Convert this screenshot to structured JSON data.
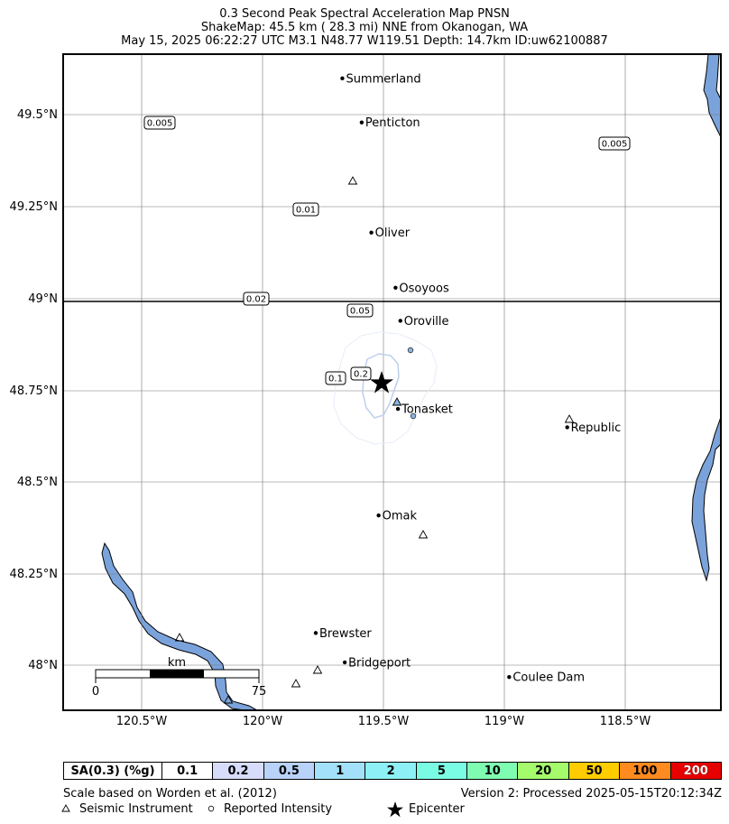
{
  "title": {
    "line1": "0.3 Second Peak Spectral Acceleration Map PNSN",
    "line2": "ShakeMap: 45.5 km (  28.3 mi) NNE from Okanogan, WA",
    "line3": "May 15, 2025 06:22:27 UTC M3.1 N48.77 W119.51 Depth: 14.7km ID:uw62100887"
  },
  "axes": {
    "x_ticks": [
      "120.5°W",
      "120°W",
      "119.5°W",
      "119°W",
      "118.5°W"
    ],
    "y_ticks": [
      "49.5°N",
      "49.25°N",
      "49°N",
      "48.75°N",
      "48.5°N",
      "48.25°N",
      "48°N"
    ]
  },
  "cities": [
    {
      "name": "Summerland",
      "lon": -119.67,
      "lat": 49.6
    },
    {
      "name": "Penticton",
      "lon": -119.59,
      "lat": 49.48
    },
    {
      "name": "Oliver",
      "lon": -119.55,
      "lat": 49.18
    },
    {
      "name": "Osoyoos",
      "lon": -119.45,
      "lat": 49.03
    },
    {
      "name": "Oroville",
      "lon": -119.43,
      "lat": 48.94
    },
    {
      "name": "Tonasket",
      "lon": -119.44,
      "lat": 48.7
    },
    {
      "name": "Republic",
      "lon": -118.74,
      "lat": 48.65
    },
    {
      "name": "Omak",
      "lon": -119.52,
      "lat": 48.41
    },
    {
      "name": "Brewster",
      "lon": -119.78,
      "lat": 48.09
    },
    {
      "name": "Bridgeport",
      "lon": -119.66,
      "lat": 48.01
    },
    {
      "name": "Coulee Dam",
      "lon": -118.98,
      "lat": 47.97
    }
  ],
  "contour_labels": [
    "0.005",
    "0.005",
    "0.01",
    "0.02",
    "0.05",
    "0.1",
    "0.2"
  ],
  "scale_bar": {
    "unit": "km",
    "start": "0",
    "end": "75"
  },
  "legend": {
    "header": "SA(0.3) (%g)",
    "bins": [
      {
        "label": "0.1",
        "color": "#ffffff"
      },
      {
        "label": "0.2",
        "color": "#d6dcfa"
      },
      {
        "label": "0.5",
        "color": "#b9d2fa"
      },
      {
        "label": "1",
        "color": "#a3e1fa"
      },
      {
        "label": "2",
        "color": "#8cf0f6"
      },
      {
        "label": "5",
        "color": "#7afbe3"
      },
      {
        "label": "10",
        "color": "#7ffcb1"
      },
      {
        "label": "20",
        "color": "#a5fb6c"
      },
      {
        "label": "50",
        "color": "#ffcc00"
      },
      {
        "label": "100",
        "color": "#ff8a1f"
      },
      {
        "label": "200",
        "color": "#e60000"
      }
    ]
  },
  "footer": {
    "scale_note": "Scale based on Worden et al. (2012)",
    "version": "Version 2: Processed 2025-05-15T20:12:34Z",
    "legend_instrument": "Seismic Instrument",
    "legend_intensity": "Reported Intensity",
    "legend_epicenter": "Epicenter"
  },
  "colors": {
    "water": "#7ba3db",
    "contour": "#bccfee",
    "intensity_fill": "#8ab4e4"
  }
}
